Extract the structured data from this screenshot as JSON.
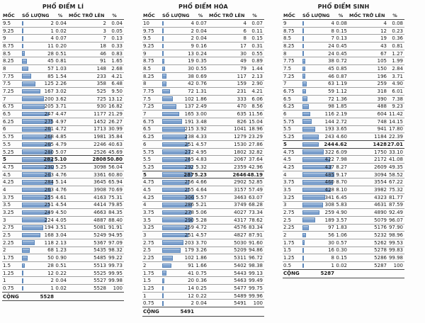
{
  "accent_color": "#6f95c6",
  "line_color": "#a3a3a3",
  "chart_data": [
    {
      "type": "table",
      "title": "PHỔ ĐIỂM LÍ",
      "columns": [
        "MỐC",
        "SỐ LƯỢNG",
        "%",
        "MỐC TRỞ LÊN",
        "%"
      ],
      "total_label": "CỘNG",
      "total": "5528",
      "bar_max": 290,
      "bold_moc": "5",
      "rows": [
        [
          "9.5",
          2,
          "0.04",
          2,
          "0.04"
        ],
        [
          "9.25",
          1,
          "0.02",
          3,
          "0.05"
        ],
        [
          "9",
          4,
          "0.07",
          7,
          "0.13"
        ],
        [
          "8.75",
          11,
          "0.20",
          18,
          "0.33"
        ],
        [
          "8.5",
          28,
          "0.51",
          46,
          "0.83"
        ],
        [
          "8.25",
          45,
          "0.81",
          91,
          "1.65"
        ],
        [
          "8",
          57,
          "1.03",
          148,
          "2.68"
        ],
        [
          "7.75",
          85,
          "1.54",
          233,
          "4.21"
        ],
        [
          "7.5",
          125,
          "2.26",
          358,
          "6.48"
        ],
        [
          "7.25",
          167,
          "3.02",
          525,
          "9.50"
        ],
        [
          "7",
          200,
          "3.62",
          725,
          "13.12"
        ],
        [
          "6.75",
          205,
          "3.71",
          930,
          "16.82"
        ],
        [
          "6.5",
          247,
          "4.47",
          1177,
          "21.29"
        ],
        [
          "6.25",
          275,
          "4.97",
          1452,
          "26.27"
        ],
        [
          "6",
          261,
          "4.72",
          1713,
          "30.99"
        ],
        [
          "5.75",
          268,
          "4.85",
          1981,
          "35.84"
        ],
        [
          "5.5",
          265,
          "4.79",
          2246,
          "40.63"
        ],
        [
          "5.25",
          280,
          "5.07",
          2526,
          "45.69"
        ],
        [
          "5",
          282,
          "5.10",
          2808,
          "50.80"
        ],
        [
          "4.75",
          290,
          "5.25",
          3098,
          "56.04"
        ],
        [
          "4.5",
          263,
          "4.76",
          3361,
          "60.80"
        ],
        [
          "4.25",
          284,
          "5.14",
          3645,
          "65.94"
        ],
        [
          "4",
          263,
          "4.76",
          3908,
          "70.69"
        ],
        [
          "3.75",
          255,
          "4.61",
          4163,
          "75.31"
        ],
        [
          "3.5",
          251,
          "4.54",
          4414,
          "79.85"
        ],
        [
          "3.25",
          249,
          "4.50",
          4663,
          "84.35"
        ],
        [
          "3",
          224,
          "4.05",
          4887,
          "88.40"
        ],
        [
          "2.75",
          194,
          "3.51",
          5081,
          "91.91"
        ],
        [
          "2.5",
          168,
          "3.04",
          5249,
          "94.95"
        ],
        [
          "2.25",
          118,
          "2.13",
          5367,
          "97.09"
        ],
        [
          "2",
          68,
          "1.23",
          5435,
          "98.32"
        ],
        [
          "1.75",
          50,
          "0.90",
          5485,
          "99.22"
        ],
        [
          "1.5",
          28,
          "0.51",
          5513,
          "99.73"
        ],
        [
          "1.25",
          12,
          "0.22",
          5525,
          "99.95"
        ],
        [
          "1",
          2,
          "0.04",
          5527,
          "99.98"
        ],
        [
          "0.75",
          1,
          "0.02",
          5528,
          "100"
        ]
      ]
    },
    {
      "type": "table",
      "title": "PHỔ ĐIỂM HÓA",
      "columns": [
        "MỐC",
        "SỐ LƯỢNG",
        "%",
        "MỐC TRỞ LÊN",
        "%"
      ],
      "total_label": "CỘNG",
      "total": "5491",
      "bar_max": 306,
      "bold_moc": "5",
      "rows": [
        [
          "10",
          4,
          "0.07",
          4,
          "0.07"
        ],
        [
          "9.75",
          2,
          "0.04",
          6,
          "0.11"
        ],
        [
          "9.5",
          2,
          "0.04",
          8,
          "0.15"
        ],
        [
          "9.25",
          9,
          "0.16",
          17,
          "0.31"
        ],
        [
          "9",
          13,
          "0.24",
          30,
          "0.55"
        ],
        [
          "8.75",
          19,
          "0.35",
          49,
          "0.89"
        ],
        [
          "8.5",
          30,
          "0.55",
          79,
          "1.44"
        ],
        [
          "8.25",
          38,
          "0.69",
          117,
          "2.13"
        ],
        [
          "8",
          42,
          "0.76",
          159,
          "2.90"
        ],
        [
          "7.75",
          72,
          "1.31",
          231,
          "4.21"
        ],
        [
          "7.5",
          102,
          "1.86",
          333,
          "6.06"
        ],
        [
          "7.25",
          137,
          "2.49",
          470,
          "8.56"
        ],
        [
          "7",
          165,
          "3.00",
          635,
          "11.56"
        ],
        [
          "6.75",
          191,
          "3.48",
          826,
          "15.04"
        ],
        [
          "6.5",
          215,
          "3.92",
          1041,
          "18.96"
        ],
        [
          "6.25",
          238,
          "4.33",
          1279,
          "23.29"
        ],
        [
          "6",
          251,
          "4.57",
          1530,
          "27.86"
        ],
        [
          "5.75",
          272,
          "4.95",
          1802,
          "32.82"
        ],
        [
          "5.5",
          265,
          "4.83",
          2067,
          "37.64"
        ],
        [
          "5.25",
          292,
          "5.32",
          2359,
          "42.96"
        ],
        [
          "5",
          287,
          "5.23",
          2646,
          "48.19"
        ],
        [
          "4.75",
          256,
          "4.66",
          2902,
          "52.85"
        ],
        [
          "4.5",
          255,
          "4.64",
          3157,
          "57.49"
        ],
        [
          "4.25",
          306,
          "5.57",
          3463,
          "63.07"
        ],
        [
          "4",
          286,
          "5.21",
          3749,
          "68.28"
        ],
        [
          "3.75",
          278,
          "5.06",
          4027,
          "73.34"
        ],
        [
          "3.5",
          290,
          "5.28",
          4317,
          "78.62"
        ],
        [
          "3.25",
          259,
          "4.72",
          4576,
          "83.34"
        ],
        [
          "3",
          251,
          "4.57",
          4827,
          "87.91"
        ],
        [
          "2.75",
          203,
          "3.70",
          5030,
          "91.60"
        ],
        [
          "2.5",
          179,
          "3.26",
          5209,
          "94.86"
        ],
        [
          "2.25",
          102,
          "1.86",
          5311,
          "96.72"
        ],
        [
          "2",
          91,
          "1.66",
          5402,
          "98.38"
        ],
        [
          "1.75",
          41,
          "0.75",
          5443,
          "99.13"
        ],
        [
          "1.5",
          20,
          "0.36",
          5463,
          "99.49"
        ],
        [
          "1.25",
          14,
          "0.25",
          5477,
          "99.75"
        ],
        [
          "1",
          12,
          "0.22",
          5489,
          "99.96"
        ],
        [
          "0.75",
          2,
          "0.04",
          5491,
          "100"
        ]
      ]
    },
    {
      "type": "table",
      "title": "PHỔ ĐIỂM SINH",
      "columns": [
        "MỐC",
        "SỐ LƯỢNG",
        "%",
        "MỐC TRỞ LÊN",
        "%"
      ],
      "total_label": "CỘNG",
      "total": "5287",
      "bar_max": 485,
      "bold_moc": "5",
      "rows": [
        [
          "9",
          4,
          "0.08",
          4,
          "0.08"
        ],
        [
          "8.75",
          8,
          "0.15",
          12,
          "0.23"
        ],
        [
          "8.5",
          7,
          "0.13",
          19,
          "0.36"
        ],
        [
          "8.25",
          24,
          "0.45",
          43,
          "0.81"
        ],
        [
          "8",
          24,
          "0.45",
          67,
          "1.27"
        ],
        [
          "7.75",
          38,
          "0.72",
          105,
          "1.99"
        ],
        [
          "7.5",
          45,
          "0.85",
          150,
          "2.84"
        ],
        [
          "7.25",
          46,
          "0.87",
          196,
          "3.71"
        ],
        [
          "7",
          63,
          "1.19",
          259,
          "4.90"
        ],
        [
          "6.75",
          59,
          "1.12",
          318,
          "6.01"
        ],
        [
          "6.5",
          72,
          "1.36",
          390,
          "7.38"
        ],
        [
          "6.25",
          98,
          "1.85",
          488,
          "9.23"
        ],
        [
          "6",
          116,
          "2.19",
          604,
          "11.42"
        ],
        [
          "5.75",
          144,
          "2.72",
          748,
          "14.15"
        ],
        [
          "5.5",
          193,
          "3.65",
          941,
          "17.80"
        ],
        [
          "5.25",
          243,
          "4.60",
          1184,
          "22.39"
        ],
        [
          "5",
          244,
          "4.62",
          1428,
          "27.01"
        ],
        [
          "4.75",
          322,
          "6.09",
          1750,
          "33.10"
        ],
        [
          "4.5",
          422,
          "7.98",
          2172,
          "41.08"
        ],
        [
          "4.25",
          437,
          "8.27",
          2609,
          "49.35"
        ],
        [
          "4",
          485,
          "9.17",
          3094,
          "58.52"
        ],
        [
          "3.75",
          460,
          "8.70",
          3554,
          "67.22"
        ],
        [
          "3.5",
          428,
          "8.10",
          3982,
          "75.32"
        ],
        [
          "3.25",
          341,
          "6.45",
          4323,
          "81.77"
        ],
        [
          "3",
          308,
          "5.83",
          4631,
          "87.59"
        ],
        [
          "2.75",
          259,
          "4.90",
          4890,
          "92.49"
        ],
        [
          "2.5",
          189,
          "3.57",
          5079,
          "96.07"
        ],
        [
          "2.25",
          97,
          "1.83",
          5176,
          "97.90"
        ],
        [
          "2",
          56,
          "1.06",
          5232,
          "98.96"
        ],
        [
          "1.75",
          30,
          "0.57",
          5262,
          "99.53"
        ],
        [
          "1.5",
          16,
          "0.30",
          5278,
          "99.83"
        ],
        [
          "1.25",
          8,
          "0.15",
          5286,
          "99.98"
        ],
        [
          "0.5",
          1,
          "0.02",
          5287,
          "100"
        ]
      ]
    }
  ]
}
